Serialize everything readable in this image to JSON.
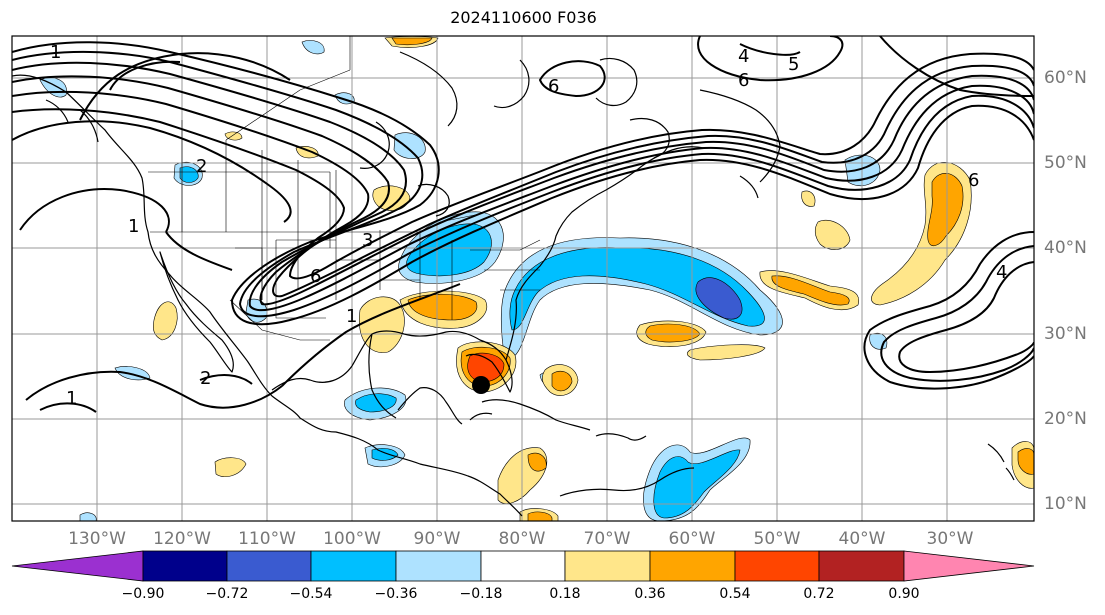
{
  "title": "2024110600 F036",
  "lon_labels": [
    "130°W",
    "120°W",
    "110°W",
    "100°W",
    "90°W",
    "80°W",
    "70°W",
    "60°W",
    "50°W",
    "40°W",
    "30°W"
  ],
  "lat_labels": [
    "60°N",
    "50°N",
    "40°N",
    "30°N",
    "20°N",
    "10°N"
  ],
  "contour_labels": [
    "1",
    "1",
    "1",
    "1",
    "2",
    "2",
    "3",
    "4",
    "4",
    "5",
    "6",
    "6",
    "6",
    "6"
  ],
  "colorbar": {
    "tick_labels": [
      "−0.90",
      "−0.72",
      "−0.54",
      "−0.36",
      "−0.18",
      "0.18",
      "0.36",
      "0.54",
      "0.72",
      "0.90"
    ],
    "colors": [
      "#9b30d0",
      "#00008b",
      "#3a5bd0",
      "#00bfff",
      "#aee2ff",
      "#ffffff",
      "#ffe68a",
      "#ffa500",
      "#ff4500",
      "#b22222",
      "#ff85b0"
    ]
  },
  "storm_marker": {
    "lon": -84.5,
    "lat": 23.5
  }
}
